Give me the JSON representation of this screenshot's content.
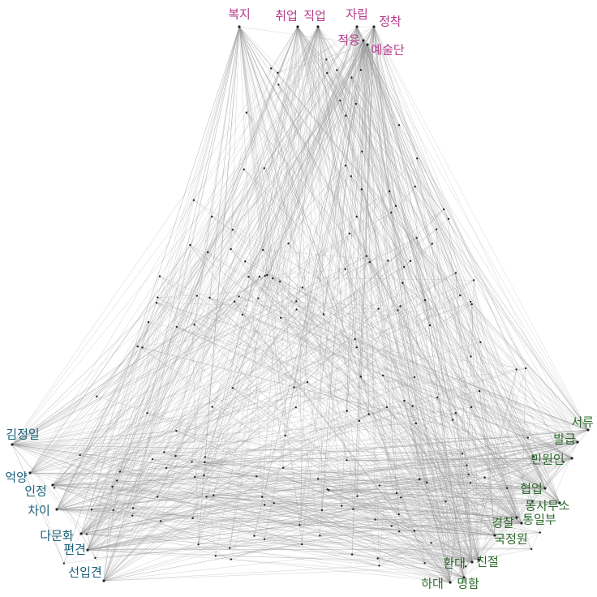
{
  "clusters": [
    {
      "color": "#b5388a",
      "nodes": [
        "복지",
        "취업",
        "직업",
        "자립",
        "정착",
        "적응",
        "예술단"
      ]
    },
    {
      "color": "#1a6078",
      "nodes": [
        "김정일",
        "억양",
        "인정",
        "차이",
        "다문화",
        "편견",
        "선입견"
      ]
    },
    {
      "color": "#2e6b2e",
      "nodes": [
        "서류",
        "발급",
        "민원인",
        "협업",
        "동사무소",
        "경찰",
        "통일부",
        "국정원",
        "환대",
        "친절",
        "하대",
        "명함"
      ]
    }
  ]
}
